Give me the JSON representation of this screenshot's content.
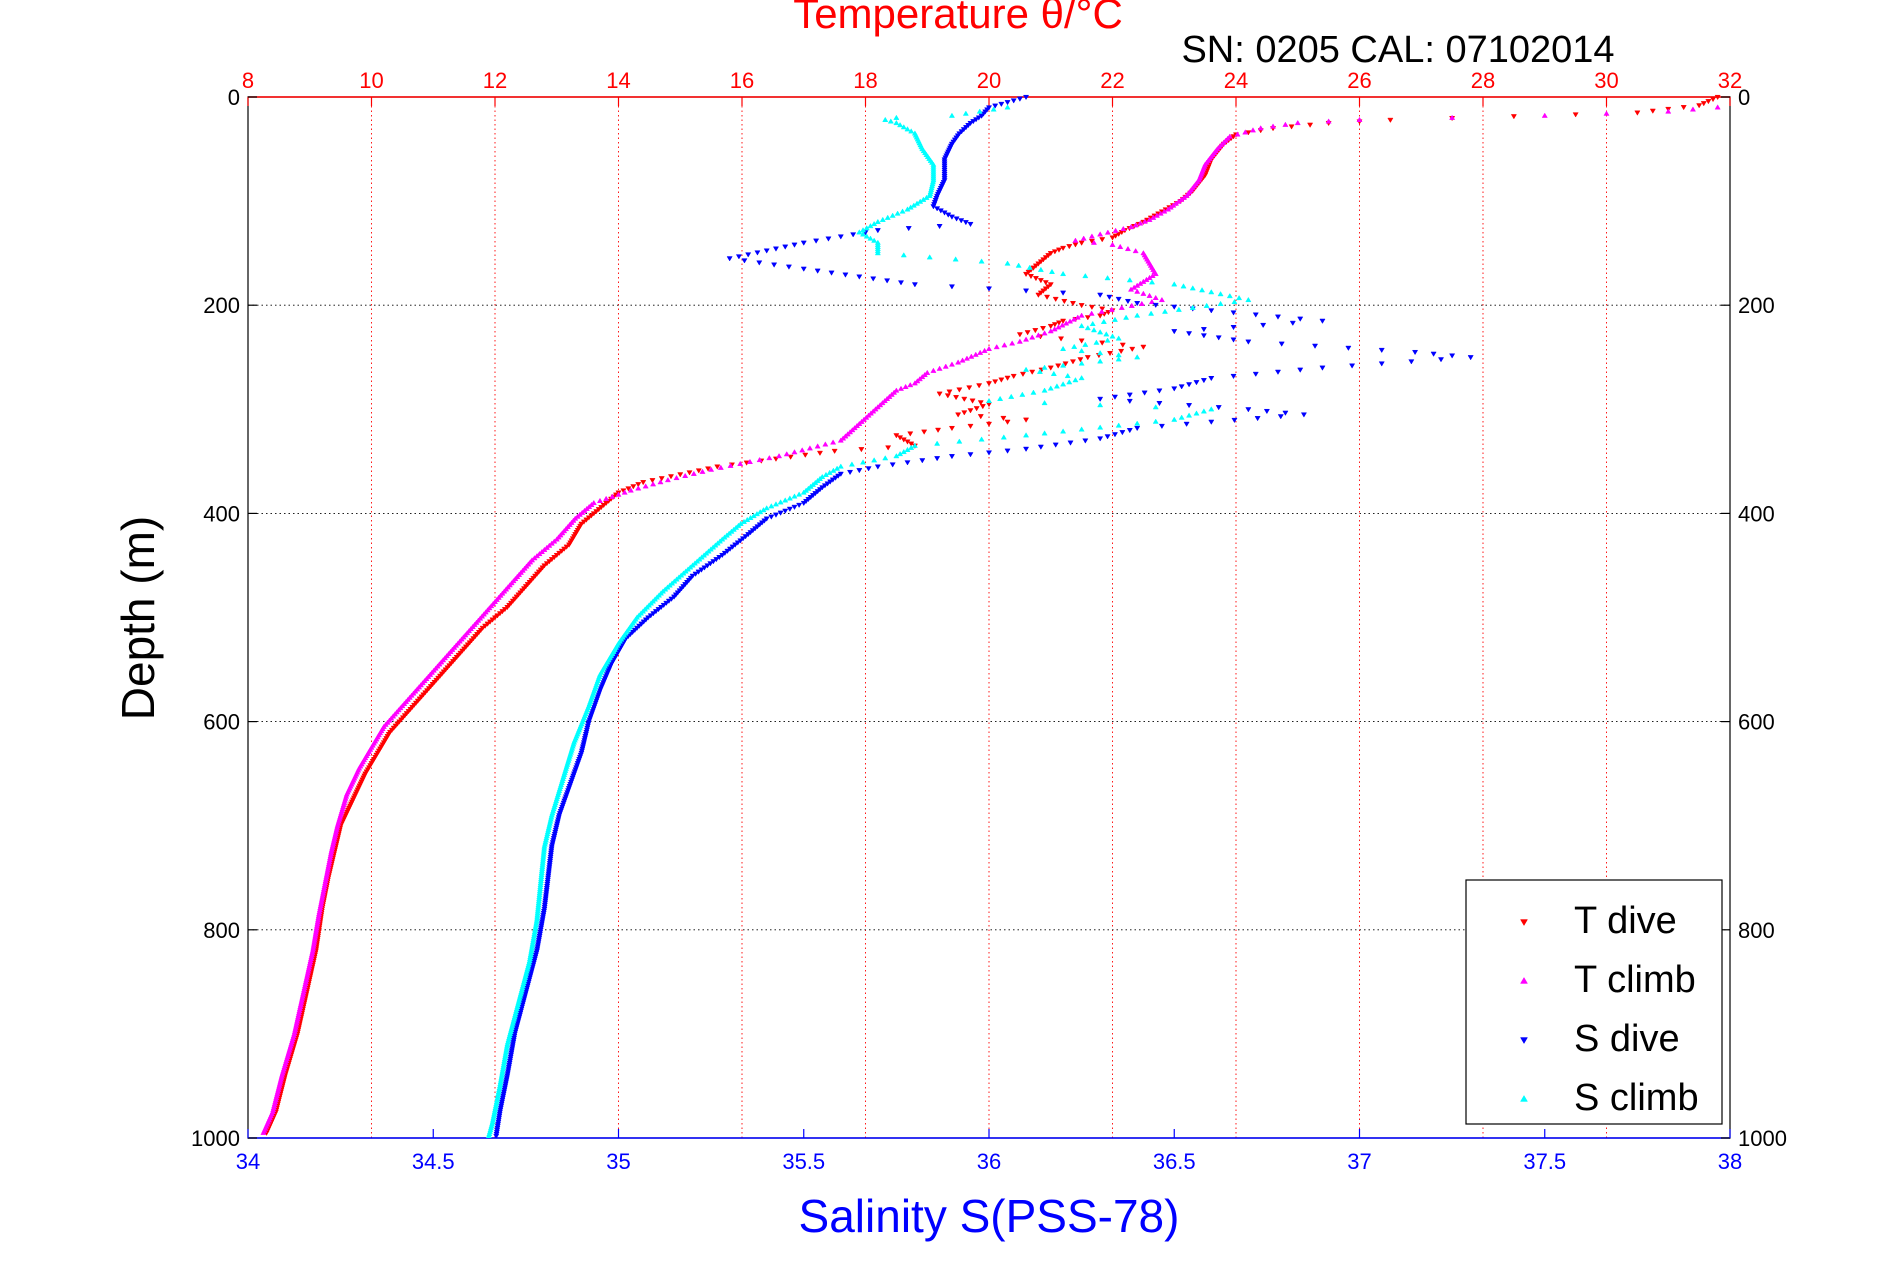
{
  "chart_data": {
    "type": "scatter",
    "title": "Temperature θ/°C",
    "subtitle": "SN: 0205  CAL: 07102014",
    "xlabel": "Salinity S(PSS-78)",
    "ylabel": "Depth (m)",
    "x_bottom": {
      "label": "Salinity S(PSS-78)",
      "range": [
        34,
        38
      ],
      "ticks": [
        "34",
        "34.5",
        "35",
        "35.5",
        "36",
        "36.5",
        "37",
        "37.5",
        "38"
      ],
      "color": "#0000ff"
    },
    "x_top": {
      "label": "Temperature θ/°C",
      "range": [
        8,
        32
      ],
      "ticks": [
        "8",
        "10",
        "12",
        "14",
        "16",
        "18",
        "20",
        "22",
        "24",
        "26",
        "28",
        "30",
        "32"
      ],
      "color": "#ff0000"
    },
    "y": {
      "label": "Depth (m)",
      "range": [
        0,
        1000
      ],
      "reversed": true,
      "ticks": [
        "0",
        "200",
        "400",
        "600",
        "800",
        "1000"
      ]
    },
    "grid": true,
    "legend_position": "bottom-right",
    "series": [
      {
        "name": "T dive",
        "axis": "temperature",
        "color": "#ff0000",
        "marker": "triangle-down",
        "points": [
          [
            31.8,
            0
          ],
          [
            31.5,
            8
          ],
          [
            30.5,
            15
          ],
          [
            26.5,
            22
          ],
          [
            25.5,
            25
          ],
          [
            24.6,
            30
          ],
          [
            24.0,
            36
          ],
          [
            23.8,
            45
          ],
          [
            23.6,
            60
          ],
          [
            23.5,
            75
          ],
          [
            23.3,
            90
          ],
          [
            23.1,
            100
          ],
          [
            22.8,
            110
          ],
          [
            22.5,
            120
          ],
          [
            22.2,
            128
          ],
          [
            22.0,
            135
          ],
          [
            21.5,
            140
          ],
          [
            21.2,
            145
          ],
          [
            21.0,
            150
          ],
          [
            20.8,
            160
          ],
          [
            20.6,
            170
          ],
          [
            21.0,
            180
          ],
          [
            20.8,
            190
          ],
          [
            21.5,
            200
          ],
          [
            22.0,
            205
          ],
          [
            21.8,
            210
          ],
          [
            21.2,
            215
          ],
          [
            21.0,
            220
          ],
          [
            20.5,
            228
          ],
          [
            22.5,
            240
          ],
          [
            21.6,
            250
          ],
          [
            21.0,
            260
          ],
          [
            20.4,
            268
          ],
          [
            20.0,
            275
          ],
          [
            19.2,
            285
          ],
          [
            19.6,
            290
          ],
          [
            20.0,
            295
          ],
          [
            19.5,
            305
          ],
          [
            20.6,
            310
          ],
          [
            19.4,
            318
          ],
          [
            18.5,
            325
          ],
          [
            18.8,
            335
          ],
          [
            17.5,
            340
          ],
          [
            15.6,
            355
          ],
          [
            14.4,
            370
          ],
          [
            14.0,
            380
          ],
          [
            13.8,
            390
          ],
          [
            13.4,
            410
          ],
          [
            13.2,
            430
          ],
          [
            12.8,
            450
          ],
          [
            12.5,
            470
          ],
          [
            12.2,
            490
          ],
          [
            11.8,
            510
          ],
          [
            11.5,
            530
          ],
          [
            11.2,
            550
          ],
          [
            10.9,
            570
          ],
          [
            10.6,
            590
          ],
          [
            10.3,
            610
          ],
          [
            10.1,
            630
          ],
          [
            9.9,
            650
          ],
          [
            9.7,
            675
          ],
          [
            9.5,
            700
          ],
          [
            9.4,
            725
          ],
          [
            9.3,
            750
          ],
          [
            9.2,
            780
          ],
          [
            9.1,
            820
          ],
          [
            8.95,
            860
          ],
          [
            8.8,
            900
          ],
          [
            8.6,
            940
          ],
          [
            8.45,
            975
          ],
          [
            8.3,
            995
          ]
        ]
      },
      {
        "name": "T climb",
        "axis": "temperature",
        "color": "#ff00ff",
        "marker": "triangle-up",
        "points": [
          [
            31.8,
            10
          ],
          [
            31.0,
            14
          ],
          [
            29.0,
            18
          ],
          [
            27.5,
            20
          ],
          [
            26.0,
            22
          ],
          [
            25.0,
            25
          ],
          [
            24.4,
            30
          ],
          [
            23.9,
            38
          ],
          [
            23.7,
            50
          ],
          [
            23.5,
            65
          ],
          [
            23.4,
            80
          ],
          [
            23.2,
            95
          ],
          [
            22.9,
            108
          ],
          [
            22.6,
            118
          ],
          [
            22.3,
            125
          ],
          [
            21.8,
            132
          ],
          [
            21.4,
            138
          ],
          [
            22.0,
            142
          ],
          [
            22.5,
            150
          ],
          [
            22.6,
            160
          ],
          [
            22.7,
            170
          ],
          [
            22.3,
            185
          ],
          [
            22.8,
            195
          ],
          [
            21.5,
            210
          ],
          [
            21.0,
            225
          ],
          [
            20.5,
            235
          ],
          [
            20.0,
            242
          ],
          [
            19.5,
            255
          ],
          [
            19.0,
            265
          ],
          [
            18.8,
            275
          ],
          [
            18.5,
            282
          ],
          [
            17.6,
            330
          ],
          [
            16.6,
            345
          ],
          [
            15.5,
            358
          ],
          [
            14.8,
            368
          ],
          [
            14.2,
            378
          ],
          [
            13.6,
            390
          ],
          [
            13.3,
            405
          ],
          [
            13.0,
            425
          ],
          [
            12.6,
            445
          ],
          [
            12.3,
            465
          ],
          [
            12.0,
            485
          ],
          [
            11.7,
            505
          ],
          [
            11.4,
            525
          ],
          [
            11.1,
            545
          ],
          [
            10.8,
            565
          ],
          [
            10.5,
            585
          ],
          [
            10.2,
            605
          ],
          [
            10.0,
            625
          ],
          [
            9.8,
            645
          ],
          [
            9.6,
            670
          ],
          [
            9.45,
            700
          ],
          [
            9.35,
            725
          ],
          [
            9.25,
            755
          ],
          [
            9.15,
            785
          ],
          [
            9.05,
            820
          ],
          [
            8.9,
            860
          ],
          [
            8.75,
            900
          ],
          [
            8.55,
            940
          ],
          [
            8.4,
            975
          ],
          [
            8.25,
            995
          ]
        ]
      },
      {
        "name": "S dive",
        "axis": "salinity",
        "color": "#0000ff",
        "marker": "triangle-down",
        "points": [
          [
            36.1,
            0
          ],
          [
            36.05,
            5
          ],
          [
            36.0,
            10
          ],
          [
            35.98,
            18
          ],
          [
            35.95,
            25
          ],
          [
            35.92,
            35
          ],
          [
            35.9,
            45
          ],
          [
            35.88,
            60
          ],
          [
            35.88,
            80
          ],
          [
            35.86,
            95
          ],
          [
            35.85,
            105
          ],
          [
            35.9,
            115
          ],
          [
            35.95,
            122
          ],
          [
            35.7,
            128
          ],
          [
            35.5,
            140
          ],
          [
            35.3,
            155
          ],
          [
            35.5,
            165
          ],
          [
            35.8,
            180
          ],
          [
            36.3,
            190
          ],
          [
            36.4,
            198
          ],
          [
            36.6,
            205
          ],
          [
            36.9,
            215
          ],
          [
            36.5,
            225
          ],
          [
            36.7,
            235
          ],
          [
            37.15,
            245
          ],
          [
            37.3,
            250
          ],
          [
            36.9,
            260
          ],
          [
            36.6,
            270
          ],
          [
            36.5,
            280
          ],
          [
            36.3,
            290
          ],
          [
            36.7,
            300
          ],
          [
            36.85,
            305
          ],
          [
            36.6,
            312
          ],
          [
            36.4,
            318
          ],
          [
            36.3,
            328
          ],
          [
            36.1,
            338
          ],
          [
            35.9,
            345
          ],
          [
            35.7,
            355
          ],
          [
            35.6,
            362
          ],
          [
            35.55,
            375
          ],
          [
            35.5,
            390
          ],
          [
            35.4,
            405
          ],
          [
            35.35,
            420
          ],
          [
            35.28,
            440
          ],
          [
            35.2,
            460
          ],
          [
            35.15,
            480
          ],
          [
            35.08,
            500
          ],
          [
            35.02,
            520
          ],
          [
            34.98,
            545
          ],
          [
            34.95,
            570
          ],
          [
            34.92,
            600
          ],
          [
            34.9,
            630
          ],
          [
            34.87,
            660
          ],
          [
            34.84,
            690
          ],
          [
            34.82,
            720
          ],
          [
            34.81,
            750
          ],
          [
            34.8,
            780
          ],
          [
            34.78,
            820
          ],
          [
            34.75,
            860
          ],
          [
            34.72,
            900
          ],
          [
            34.7,
            940
          ],
          [
            34.68,
            975
          ],
          [
            34.67,
            998
          ]
        ]
      },
      {
        "name": "S climb",
        "axis": "salinity",
        "color": "#00ffff",
        "marker": "triangle-up",
        "points": [
          [
            36.05,
            10
          ],
          [
            35.9,
            18
          ],
          [
            35.75,
            20
          ],
          [
            35.72,
            22
          ],
          [
            35.75,
            25
          ],
          [
            35.8,
            35
          ],
          [
            35.82,
            50
          ],
          [
            35.85,
            65
          ],
          [
            35.85,
            80
          ],
          [
            35.84,
            95
          ],
          [
            35.78,
            108
          ],
          [
            35.7,
            120
          ],
          [
            35.65,
            130
          ],
          [
            35.7,
            140
          ],
          [
            35.7,
            150
          ],
          [
            36.05,
            160
          ],
          [
            36.2,
            170
          ],
          [
            36.5,
            180
          ],
          [
            36.7,
            195
          ],
          [
            36.4,
            210
          ],
          [
            36.25,
            220
          ],
          [
            36.35,
            232
          ],
          [
            36.2,
            242
          ],
          [
            36.4,
            250
          ],
          [
            36.1,
            262
          ],
          [
            36.25,
            270
          ],
          [
            36.15,
            282
          ],
          [
            36.0,
            292
          ],
          [
            36.6,
            300
          ],
          [
            36.5,
            310
          ],
          [
            36.1,
            325
          ],
          [
            35.8,
            335
          ],
          [
            35.75,
            345
          ],
          [
            35.6,
            355
          ],
          [
            35.55,
            365
          ],
          [
            35.5,
            380
          ],
          [
            35.4,
            395
          ],
          [
            35.33,
            410
          ],
          [
            35.28,
            425
          ],
          [
            35.2,
            450
          ],
          [
            35.12,
            475
          ],
          [
            35.05,
            500
          ],
          [
            35.0,
            525
          ],
          [
            34.95,
            555
          ],
          [
            34.92,
            585
          ],
          [
            34.88,
            620
          ],
          [
            34.85,
            655
          ],
          [
            34.82,
            690
          ],
          [
            34.8,
            720
          ],
          [
            34.79,
            755
          ],
          [
            34.78,
            790
          ],
          [
            34.76,
            830
          ],
          [
            34.73,
            870
          ],
          [
            34.7,
            910
          ],
          [
            34.68,
            950
          ],
          [
            34.66,
            985
          ],
          [
            34.65,
            998
          ]
        ]
      }
    ]
  }
}
